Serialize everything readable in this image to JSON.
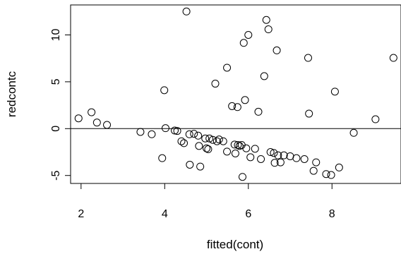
{
  "chart_data": {
    "type": "scatter",
    "title": "",
    "xlabel": "fitted(cont)",
    "ylabel": "redcontc",
    "xlim": [
      1.75,
      9.65
    ],
    "ylim": [
      -5.85,
      13.2
    ],
    "x_ticks": [
      2,
      4,
      6,
      8
    ],
    "x_tick_labels": [
      "2",
      "4",
      "6",
      "8"
    ],
    "y_ticks": [
      -5,
      0,
      5,
      10
    ],
    "y_tick_labels": [
      "-5",
      "0",
      "5",
      "10"
    ],
    "reference_line_y": 0,
    "grid": false,
    "legend": "none",
    "marker": "open-circle",
    "series": [
      {
        "points": [
          [
            1.94,
            1.1
          ],
          [
            2.25,
            1.75
          ],
          [
            2.38,
            0.65
          ],
          [
            2.62,
            0.4
          ],
          [
            3.42,
            -0.35
          ],
          [
            3.69,
            -0.6
          ],
          [
            3.94,
            -3.15
          ],
          [
            3.99,
            4.1
          ],
          [
            4.02,
            0.05
          ],
          [
            4.24,
            -0.2
          ],
          [
            4.3,
            -0.25
          ],
          [
            4.4,
            -1.35
          ],
          [
            4.46,
            -1.55
          ],
          [
            4.52,
            12.5
          ],
          [
            4.59,
            -0.6
          ],
          [
            4.6,
            -3.85
          ],
          [
            4.7,
            -0.55
          ],
          [
            4.8,
            -0.75
          ],
          [
            4.82,
            -1.85
          ],
          [
            4.85,
            -4.05
          ],
          [
            4.97,
            -1.05
          ],
          [
            5.0,
            -2.1
          ],
          [
            5.04,
            -2.2
          ],
          [
            5.07,
            -1.05
          ],
          [
            5.15,
            -1.2
          ],
          [
            5.21,
            4.8
          ],
          [
            5.25,
            -1.35
          ],
          [
            5.3,
            -1.15
          ],
          [
            5.4,
            -1.35
          ],
          [
            5.49,
            6.5
          ],
          [
            5.49,
            -2.45
          ],
          [
            5.61,
            2.4
          ],
          [
            5.67,
            -1.7
          ],
          [
            5.69,
            -2.65
          ],
          [
            5.74,
            2.3
          ],
          [
            5.75,
            -1.75
          ],
          [
            5.79,
            -1.85
          ],
          [
            5.84,
            -1.75
          ],
          [
            5.86,
            -5.15
          ],
          [
            5.89,
            9.15
          ],
          [
            5.92,
            3.05
          ],
          [
            5.95,
            -2.1
          ],
          [
            6.0,
            10.0
          ],
          [
            6.05,
            -3.05
          ],
          [
            6.16,
            -2.15
          ],
          [
            6.24,
            1.8
          ],
          [
            6.3,
            -3.25
          ],
          [
            6.38,
            5.6
          ],
          [
            6.43,
            11.6
          ],
          [
            6.48,
            10.6
          ],
          [
            6.53,
            -2.5
          ],
          [
            6.61,
            -2.6
          ],
          [
            6.63,
            -3.65
          ],
          [
            6.68,
            8.35
          ],
          [
            6.71,
            -2.85
          ],
          [
            6.77,
            -3.6
          ],
          [
            6.85,
            -2.85
          ],
          [
            7.0,
            -2.95
          ],
          [
            7.15,
            -3.15
          ],
          [
            7.34,
            -3.25
          ],
          [
            7.43,
            7.55
          ],
          [
            7.45,
            1.6
          ],
          [
            7.56,
            -4.5
          ],
          [
            7.62,
            -3.6
          ],
          [
            7.86,
            -4.85
          ],
          [
            7.98,
            -4.95
          ],
          [
            8.07,
            3.95
          ],
          [
            8.17,
            -4.15
          ],
          [
            8.52,
            -0.45
          ],
          [
            9.04,
            1.0
          ],
          [
            9.47,
            7.55
          ]
        ]
      }
    ]
  }
}
